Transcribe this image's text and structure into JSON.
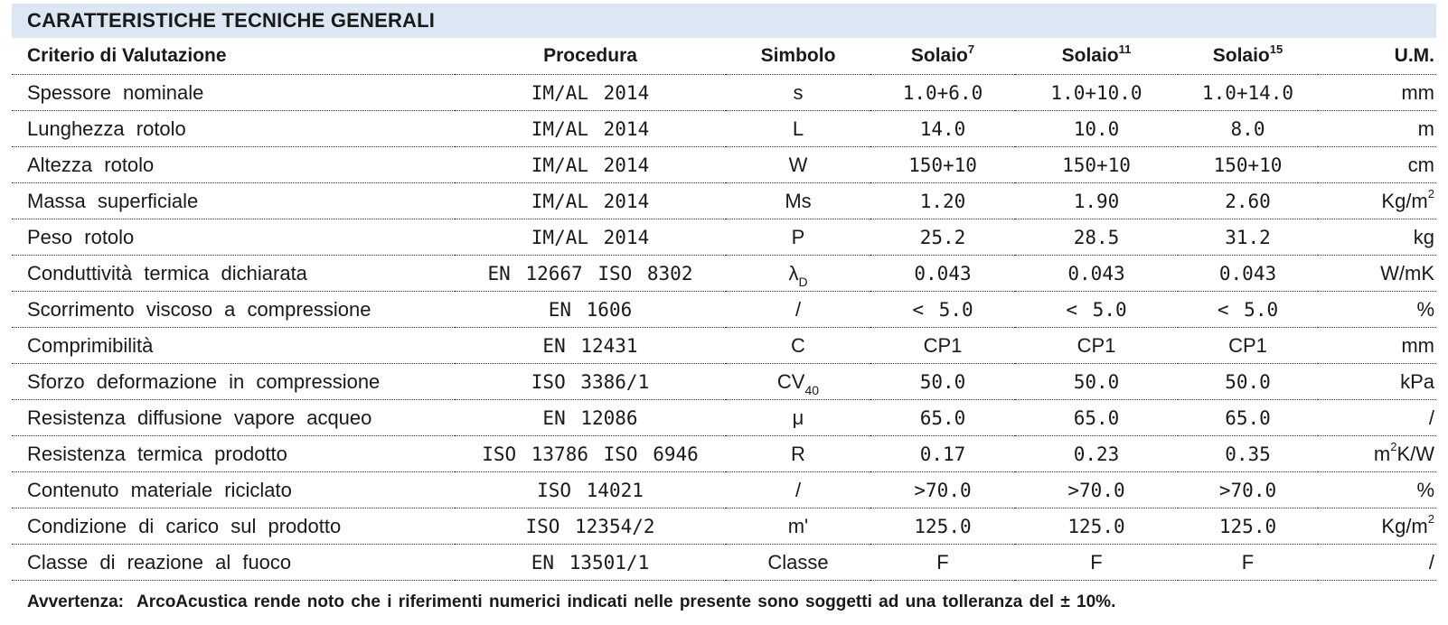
{
  "title": "CARATTERISTICHE TECNICHE GENERALI",
  "headers": {
    "criterio": "Criterio di Valutazione",
    "procedura": "Procedura",
    "simbolo": "Simbolo",
    "solaio7": "Solaio",
    "solaio7_sup": "7",
    "solaio11": "Solaio",
    "solaio11_sup": "11",
    "solaio15": "Solaio",
    "solaio15_sup": "15",
    "um": "U.M."
  },
  "rows": [
    {
      "criterio": "Spessore nominale",
      "procedura": "IM/AL 2014",
      "simbolo": "s",
      "simbolo_sub": "",
      "v7": "1.0+6.0",
      "v11": "1.0+10.0",
      "v15": "1.0+14.0",
      "um": "mm",
      "um_sup": "",
      "um_tail": ""
    },
    {
      "criterio": "Lunghezza rotolo",
      "procedura": "IM/AL 2014",
      "simbolo": "L",
      "simbolo_sub": "",
      "v7": "14.0",
      "v11": "10.0",
      "v15": "8.0",
      "um": "m",
      "um_sup": "",
      "um_tail": ""
    },
    {
      "criterio": "Altezza rotolo",
      "procedura": "IM/AL 2014",
      "simbolo": "W",
      "simbolo_sub": "",
      "v7": "150+10",
      "v11": "150+10",
      "v15": "150+10",
      "um": "cm",
      "um_sup": "",
      "um_tail": ""
    },
    {
      "criterio": "Massa superficiale",
      "procedura": "IM/AL 2014",
      "simbolo": "Ms",
      "simbolo_sub": "",
      "v7": "1.20",
      "v11": "1.90",
      "v15": "2.60",
      "um": "Kg/m",
      "um_sup": "2",
      "um_tail": ""
    },
    {
      "criterio": "Peso rotolo",
      "procedura": "IM/AL 2014",
      "simbolo": "P",
      "simbolo_sub": "",
      "v7": "25.2",
      "v11": "28.5",
      "v15": "31.2",
      "um": "kg",
      "um_sup": "",
      "um_tail": ""
    },
    {
      "criterio": "Conduttività termica dichiarata",
      "procedura": "EN 12667 ISO 8302",
      "simbolo": "λ",
      "simbolo_sub": "D",
      "v7": "0.043",
      "v11": "0.043",
      "v15": "0.043",
      "um": "W/mK",
      "um_sup": "",
      "um_tail": ""
    },
    {
      "criterio": "Scorrimento viscoso a compressione",
      "procedura": "EN 1606",
      "simbolo": "/",
      "simbolo_sub": "",
      "v7": "< 5.0",
      "v11": "< 5.0",
      "v15": "< 5.0",
      "um": "%",
      "um_sup": "",
      "um_tail": ""
    },
    {
      "criterio": "Comprimibilità",
      "procedura": "EN 12431",
      "simbolo": "C",
      "simbolo_sub": "",
      "v7": "CP1",
      "v11": "CP1",
      "v15": "CP1",
      "um": "mm",
      "um_sup": "",
      "um_tail": "",
      "text_vals": true
    },
    {
      "criterio": "Sforzo deformazione in compressione",
      "procedura": "ISO 3386/1",
      "simbolo": "CV",
      "simbolo_sub": "40",
      "v7": "50.0",
      "v11": "50.0",
      "v15": "50.0",
      "um": "kPa",
      "um_sup": "",
      "um_tail": ""
    },
    {
      "criterio": "Resistenza diffusione vapore acqueo",
      "procedura": "EN 12086",
      "simbolo": "μ",
      "simbolo_sub": "",
      "v7": "65.0",
      "v11": "65.0",
      "v15": "65.0",
      "um": "/",
      "um_sup": "",
      "um_tail": ""
    },
    {
      "criterio": "Resistenza termica prodotto",
      "procedura": "ISO 13786 ISO 6946",
      "simbolo": "R",
      "simbolo_sub": "",
      "v7": "0.17",
      "v11": "0.23",
      "v15": "0.35",
      "um": "m",
      "um_sup": "2",
      "um_tail": "K/W"
    },
    {
      "criterio": "Contenuto materiale riciclato",
      "procedura": "ISO 14021",
      "simbolo": "/",
      "simbolo_sub": "",
      "v7": ">70.0",
      "v11": ">70.0",
      "v15": ">70.0",
      "um": "%",
      "um_sup": "",
      "um_tail": ""
    },
    {
      "criterio": "Condizione di carico sul prodotto",
      "procedura": "ISO 12354/2",
      "simbolo": "m'",
      "simbolo_sub": "",
      "v7": "125.0",
      "v11": "125.0",
      "v15": "125.0",
      "um": "Kg/m",
      "um_sup": "2",
      "um_tail": ""
    },
    {
      "criterio": "Classe di reazione al fuoco",
      "procedura": "EN 13501/1",
      "simbolo": "Classe",
      "simbolo_sub": "",
      "v7": "F",
      "v11": "F",
      "v15": "F",
      "um": "/",
      "um_sup": "",
      "um_tail": "",
      "text_vals": true
    }
  ],
  "note": {
    "label": "Avvertenza:",
    "text": "ArcoAcustica rende noto che i riferimenti numerici indicati nelle presente sono soggetti ad una tolleranza del ± 10%."
  }
}
